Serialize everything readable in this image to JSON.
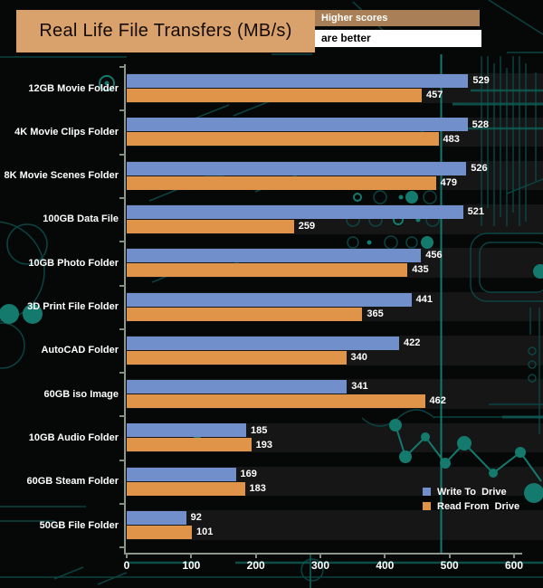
{
  "header": {
    "title": "Real Life File Transfers (MB/s)",
    "note_line1": "Higher scores",
    "note_line2": "are better",
    "title_bg": "#d9a26d",
    "note_top_bg": "#a87f56",
    "note_bottom_bg": "#ffffff"
  },
  "chart_data": {
    "type": "bar",
    "orientation": "horizontal",
    "title": "Real Life File Transfers (MB/s)",
    "categories": [
      "12GB Movie Folder",
      "4K Movie Clips Folder",
      "8K Movie Scenes Folder",
      "100GB Data File",
      "10GB Photo Folder",
      "3D Print File Folder",
      "AutoCAD Folder",
      "60GB iso Image",
      "10GB Audio Folder",
      "60GB Steam Folder",
      "50GB File Folder"
    ],
    "series": [
      {
        "name": "Write To  Drive",
        "color": "#7190cb",
        "values": [
          529,
          528,
          526,
          521,
          456,
          441,
          422,
          341,
          185,
          169,
          92
        ]
      },
      {
        "name": "Read From  Drive",
        "color": "#e0944a",
        "values": [
          457,
          483,
          479,
          259,
          435,
          365,
          340,
          462,
          193,
          183,
          101
        ]
      }
    ],
    "xlim": [
      0,
      600
    ],
    "xticks": [
      0,
      100,
      200,
      300,
      400,
      500,
      600
    ],
    "value_labels": true,
    "legend_position": "lower right",
    "grid": false,
    "background": "black circuit-board pattern",
    "accent_teal": "#147a6e"
  }
}
